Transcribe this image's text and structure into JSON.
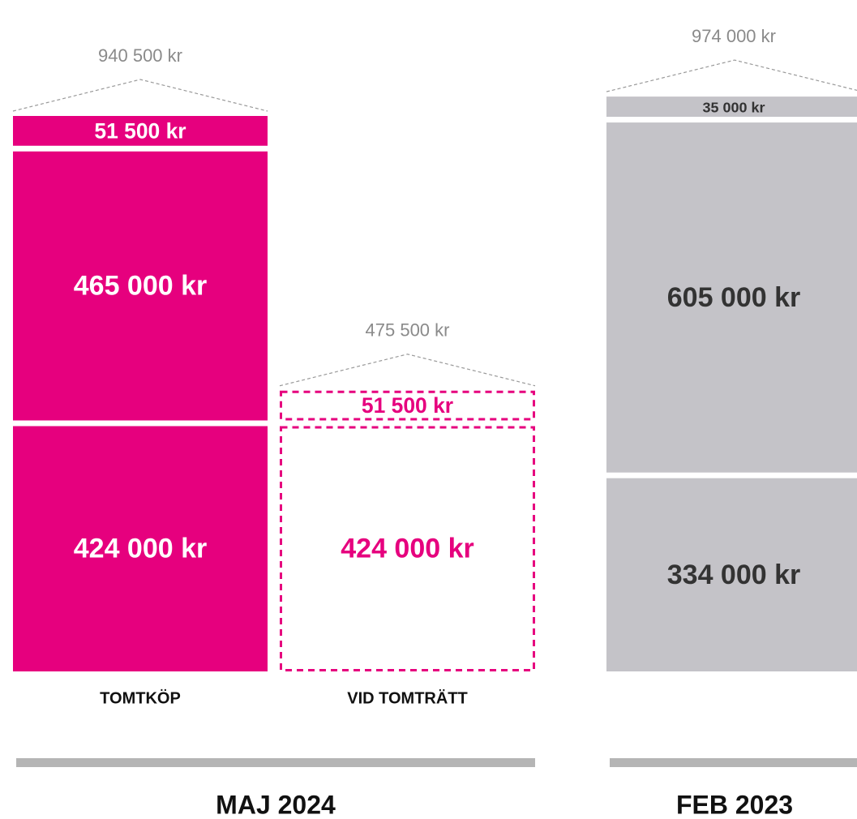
{
  "chart_data": {
    "type": "stacked_bar",
    "bars": [
      {
        "category": "TOMTKÖP",
        "style": "solid",
        "color": "#e6007e",
        "text_color": "#ffffff",
        "total": {
          "value": 940500,
          "label": "940 500 kr"
        },
        "segments": [
          {
            "value": 424000,
            "label": "424 000 kr"
          },
          {
            "value": 465000,
            "label": "465 000 kr"
          },
          {
            "value": 51500,
            "label": "51 500 kr"
          }
        ]
      },
      {
        "category": "VID TOMTRÄTT",
        "style": "dashed",
        "color": "#e6007e",
        "text_color": "#e6007e",
        "total": {
          "value": 475500,
          "label": "475 500 kr"
        },
        "segments": [
          {
            "value": 424000,
            "label": "424 000 kr"
          },
          {
            "value": 51500,
            "label": "51 500 kr"
          }
        ]
      },
      {
        "category": null,
        "style": "solid",
        "color": "#c4c3c8",
        "text_color": "#333333",
        "total": {
          "value": 974000,
          "label": "974 000 kr"
        },
        "segments": [
          {
            "value": 334000,
            "label": "334 000 kr"
          },
          {
            "value": 605000,
            "label": "605 000 kr"
          },
          {
            "value": 35000,
            "label": "35 000 kr"
          }
        ]
      }
    ],
    "groups": [
      "MAJ 2024",
      "FEB 2023"
    ]
  }
}
